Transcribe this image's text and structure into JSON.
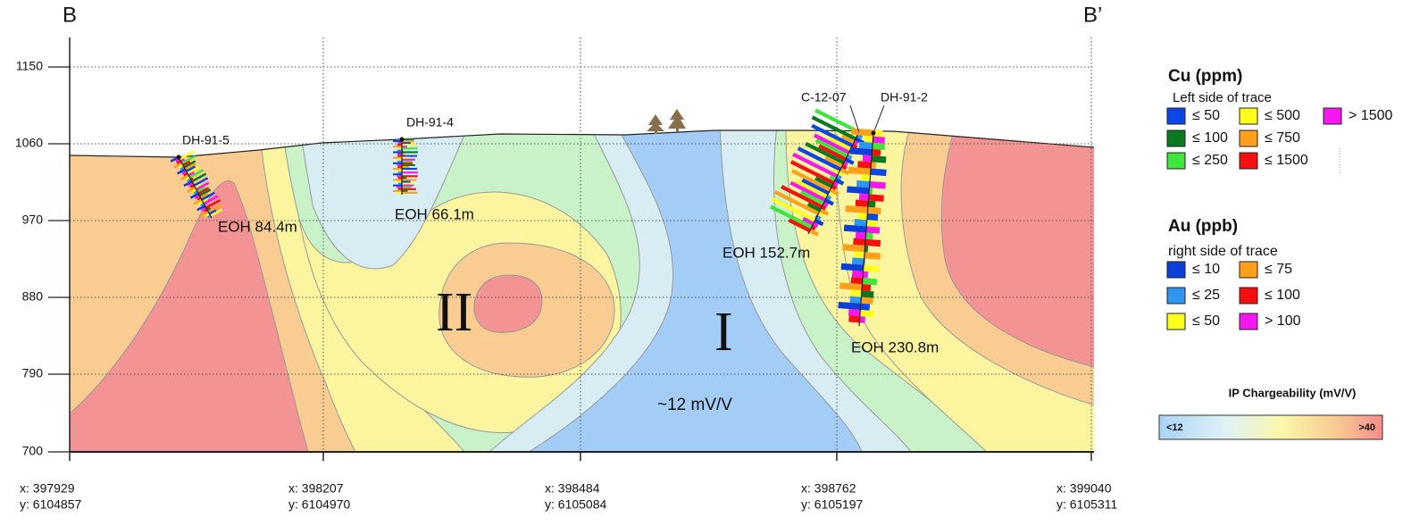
{
  "section": {
    "start_label": "B",
    "end_label": "B’",
    "elevation_ticks": [
      "1150",
      "1060",
      "970",
      "880",
      "790",
      "700"
    ],
    "coordinates": [
      {
        "x": "x: 397929",
        "y": "y: 6104857"
      },
      {
        "x": "x: 398207",
        "y": "y: 6104970"
      },
      {
        "x": "x: 398484",
        "y": "y: 6105084"
      },
      {
        "x": "x: 398762",
        "y": "y: 6105197"
      },
      {
        "x": "x: 399040",
        "y": "y: 6105311"
      }
    ],
    "drillholes": [
      {
        "name": "DH-91-5",
        "eoh": "EOH 84.4m"
      },
      {
        "name": "DH-91-4",
        "eoh": "EOH 66.1m"
      },
      {
        "name": "C-12-07",
        "eoh": "EOH 152.7m"
      },
      {
        "name": "DH-91-2",
        "eoh": "EOH 230.8m"
      }
    ],
    "zones": [
      "II",
      "I"
    ],
    "annotation": "~12 mV/V"
  },
  "legend": {
    "cu": {
      "title": "Cu (ppm)",
      "subtitle": "Left side of trace",
      "items": [
        {
          "label": "≤ 50",
          "color": "#0b46e6"
        },
        {
          "label": "≤ 100",
          "color": "#0a7a1e"
        },
        {
          "label": "≤ 250",
          "color": "#3ee53a"
        },
        {
          "label": "≤ 500",
          "color": "#ffff1e"
        },
        {
          "label": "≤ 750",
          "color": "#ff9f1a"
        },
        {
          "label": "≤ 1500",
          "color": "#f50f0f"
        },
        {
          "label": "> 1500",
          "color": "#f516f0"
        }
      ]
    },
    "au": {
      "title": "Au (ppb)",
      "subtitle": "right side of trace",
      "items": [
        {
          "label": "≤ 10",
          "color": "#0a3fd8"
        },
        {
          "label": "≤ 25",
          "color": "#2e95f0"
        },
        {
          "label": "≤ 50",
          "color": "#ffff1e"
        },
        {
          "label": "≤ 75",
          "color": "#ff9f1a"
        },
        {
          "label": "≤ 100",
          "color": "#f50f0f"
        },
        {
          "label": "> 100",
          "color": "#f516f0"
        }
      ]
    },
    "ip": {
      "title": "IP Chargeability (mV/V)",
      "min_label": "<12",
      "max_label": ">40"
    }
  }
}
